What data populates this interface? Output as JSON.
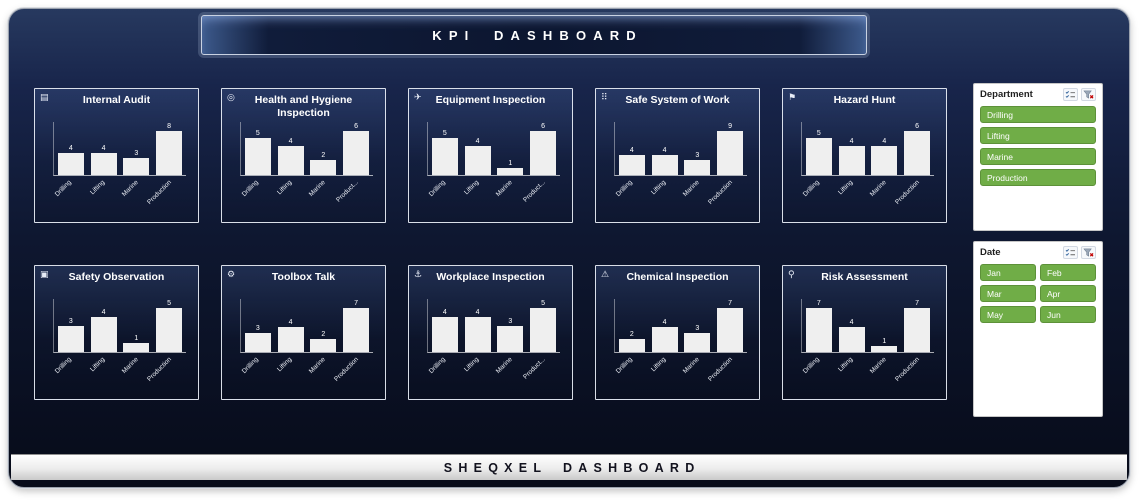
{
  "header": {
    "title": "KPI DASHBOARD"
  },
  "footer": {
    "title": "SHEQXEL DASHBOARD"
  },
  "colors": {
    "frame_navy_top": "#27395f",
    "frame_navy_bottom": "#070b19",
    "bar_fill": "#efefef",
    "slicer_button_green": "#70ad47",
    "clear_filter_x_red": "#c00000"
  },
  "slicers": [
    {
      "id": "department",
      "title": "Department",
      "columns": 1,
      "items": [
        "Drilling",
        "Lifting",
        "Marine",
        "Production"
      ]
    },
    {
      "id": "date",
      "title": "Date",
      "columns": 2,
      "items": [
        "Jan",
        "Feb",
        "Mar",
        "Apr",
        "May",
        "Jun"
      ]
    }
  ],
  "slicer_icons": [
    {
      "name": "multiselect-icon"
    },
    {
      "name": "clear-filter-icon"
    }
  ],
  "chart_data": [
    {
      "type": "bar",
      "title": "Internal Audit",
      "icon": "audit-icon",
      "glyph": "▤",
      "categories": [
        "Drilling",
        "Lifting",
        "Marine",
        "Production"
      ],
      "values": [
        4,
        4,
        3,
        8
      ]
    },
    {
      "type": "bar",
      "title": "Health and Hygiene Inspection",
      "icon": "hygiene-icon",
      "glyph": "◎",
      "categories": [
        "Drilling",
        "Lifting",
        "Marine",
        "Product..."
      ],
      "values": [
        5,
        4,
        2,
        6
      ]
    },
    {
      "type": "bar",
      "title": "Equipment Inspection",
      "icon": "equipment-icon",
      "glyph": "✈",
      "categories": [
        "Drilling",
        "Lifting",
        "Marine",
        "Product..."
      ],
      "values": [
        5,
        4,
        1,
        6
      ]
    },
    {
      "type": "bar",
      "title": "Safe System of Work",
      "icon": "safe-system-icon",
      "glyph": "⠿",
      "categories": [
        "Drilling",
        "Lifting",
        "Marine",
        "Production"
      ],
      "values": [
        4,
        4,
        3,
        9
      ]
    },
    {
      "type": "bar",
      "title": "Hazard Hunt",
      "icon": "hazard-hunt-icon",
      "glyph": "⚑",
      "categories": [
        "Drilling",
        "Lifting",
        "Marine",
        "Production"
      ],
      "values": [
        5,
        4,
        4,
        6
      ]
    },
    {
      "type": "bar",
      "title": "Safety Observation",
      "icon": "observation-icon",
      "glyph": "▣",
      "categories": [
        "Drilling",
        "Lifting",
        "Marine",
        "Production"
      ],
      "values": [
        3,
        4,
        1,
        5
      ]
    },
    {
      "type": "bar",
      "title": "Toolbox Talk",
      "icon": "toolbox-talk-icon",
      "glyph": "⚙",
      "categories": [
        "Drilling",
        "Lifting",
        "Marine",
        "Production"
      ],
      "values": [
        3,
        4,
        2,
        7
      ]
    },
    {
      "type": "bar",
      "title": "Workplace Inspection",
      "icon": "workplace-icon",
      "glyph": "⚓",
      "categories": [
        "Drilling",
        "Lifting",
        "Marine",
        "Product..."
      ],
      "values": [
        4,
        4,
        3,
        5
      ]
    },
    {
      "type": "bar",
      "title": "Chemical Inspection",
      "icon": "chemical-icon",
      "glyph": "⚠",
      "categories": [
        "Drilling",
        "Lifting",
        "Marine",
        "Production"
      ],
      "values": [
        2,
        4,
        3,
        7
      ]
    },
    {
      "type": "bar",
      "title": "Risk Assessment",
      "icon": "risk-icon",
      "glyph": "⚲",
      "categories": [
        "Drilling",
        "Lifting",
        "Marine",
        "Production"
      ],
      "values": [
        7,
        4,
        1,
        7
      ]
    }
  ]
}
